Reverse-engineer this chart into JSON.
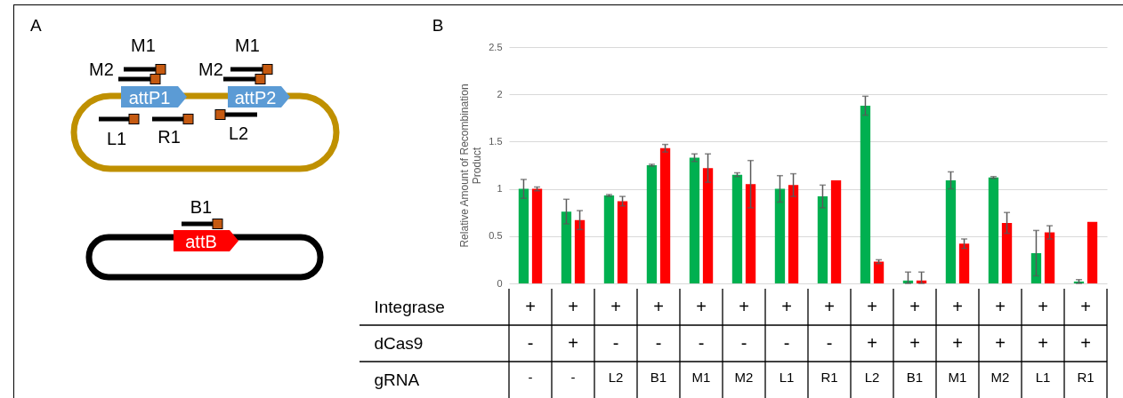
{
  "chart_data": [
    {
      "type": "other",
      "title": "A",
      "annotations": [
        "M1",
        "M2",
        "attP1",
        "M1",
        "M2",
        "attP2",
        "L1",
        "R1",
        "L2",
        "B1",
        "attB"
      ]
    },
    {
      "type": "bar",
      "title": "B",
      "ylabel": "Relative Amount of Recombination Product",
      "categories": [
        "-",
        "-",
        "L2",
        "B1",
        "M1",
        "M2",
        "L1",
        "R1",
        "L2",
        "B1",
        "M1",
        "M2",
        "L1",
        "R1"
      ],
      "series": [
        {
          "color": "#00b050",
          "values": [
            1.0,
            0.76,
            0.93,
            1.25,
            1.33,
            1.15,
            1.0,
            0.92,
            1.88,
            0.03,
            1.09,
            1.12,
            0.32,
            0.02
          ],
          "errors": [
            0.1,
            0.13,
            0.01,
            0.01,
            0.04,
            0.02,
            0.14,
            0.12,
            0.1,
            [
              0,
              0.12
            ],
            0.09,
            0.01,
            0.24,
            [
              0,
              0.04
            ]
          ]
        },
        {
          "color": "#ff0000",
          "values": [
            1.0,
            0.67,
            0.87,
            1.43,
            1.22,
            1.05,
            1.04,
            1.09,
            0.23,
            0.03,
            0.42,
            0.64,
            0.54,
            0.65
          ],
          "errors": [
            0.02,
            0.1,
            0.05,
            0.04,
            0.15,
            0.25,
            0.12,
            null,
            0.02,
            [
              0,
              0.12
            ],
            0.05,
            0.11,
            0.07,
            null
          ]
        }
      ],
      "ylim": [
        0,
        2.5
      ],
      "yticks": [
        0,
        0.5,
        1,
        1.5,
        2,
        2.5
      ],
      "grid": "y",
      "annotations": [
        "Integrase",
        "+",
        "+",
        "+",
        "+",
        "+",
        "+",
        "+",
        "+",
        "+",
        "+",
        "+",
        "+",
        "+",
        "+",
        "dCas9",
        "-",
        "+",
        "-",
        "-",
        "-",
        "-",
        "-",
        "-",
        "+",
        "+",
        "+",
        "+",
        "+",
        "+",
        "gRNA"
      ]
    }
  ]
}
